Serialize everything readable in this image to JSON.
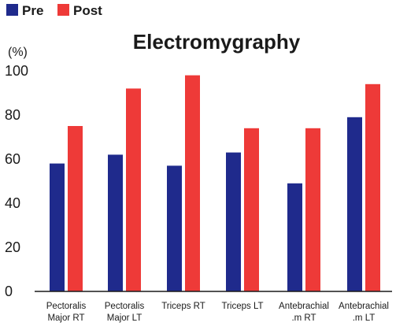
{
  "chart_data": {
    "type": "bar",
    "title": "Electromygraphy",
    "ylabel": "(%)",
    "xlabel": "",
    "ylim": [
      0,
      100
    ],
    "yticks": [
      "0",
      "20",
      "40",
      "60",
      "80",
      "100"
    ],
    "categories": [
      [
        "Pectoralis",
        "Major RT"
      ],
      [
        "Pectoralis",
        "Major LT"
      ],
      [
        "Triceps RT"
      ],
      [
        "Triceps LT"
      ],
      [
        "Antebrachial",
        ".m RT"
      ],
      [
        "Antebrachial",
        ".m LT"
      ]
    ],
    "series": [
      {
        "name": "Pre",
        "color": "#1f2a8c",
        "values": [
          58,
          62,
          57,
          63,
          49,
          79
        ]
      },
      {
        "name": "Post",
        "color": "#ee3a38",
        "values": [
          75,
          92,
          98,
          74,
          74,
          94
        ]
      }
    ],
    "legend_position": "top-left",
    "grid": false
  }
}
